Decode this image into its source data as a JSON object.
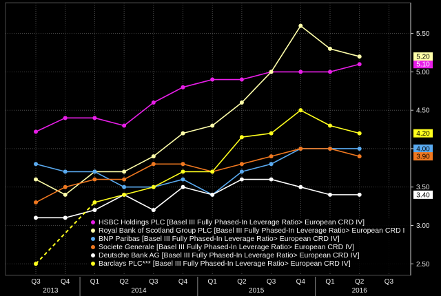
{
  "chart_data": {
    "type": "line",
    "categories": [
      "Q3",
      "Q4",
      "Q1",
      "Q2",
      "Q3",
      "Q4",
      "Q1",
      "Q2",
      "Q3",
      "Q4",
      "Q1",
      "Q2",
      "Q3"
    ],
    "years": [
      {
        "label": "2013",
        "from": 0,
        "to": 1
      },
      {
        "label": "2014",
        "from": 2,
        "to": 5
      },
      {
        "label": "2015",
        "from": 6,
        "to": 9
      },
      {
        "label": "2016",
        "from": 10,
        "to": 12
      }
    ],
    "ylim": [
      2.35,
      5.9
    ],
    "yticks": [
      "2.50",
      "3.00",
      "3.50",
      "4.00",
      "4.50",
      "5.00",
      "5.50"
    ],
    "grid": true,
    "legend_position": "bottom-left",
    "series": [
      {
        "name": "HSBC Holdings PLC [Basel III Fully Phased-In Leverage Ratio> European CRD IV]",
        "color": "#e81ee8",
        "values": [
          4.22,
          4.4,
          4.4,
          4.3,
          4.6,
          4.8,
          4.9,
          4.9,
          5.0,
          5.0,
          5.0,
          5.1,
          null
        ],
        "end_label": "5.10"
      },
      {
        "name": "Royal Bank of Scotland Group PLC [Basel III Fully Phased-In Leverage Ratio> European CRD I",
        "color": "#ffffaa",
        "values": [
          3.6,
          3.4,
          3.7,
          3.7,
          3.9,
          4.2,
          4.3,
          4.6,
          5.0,
          5.6,
          5.3,
          5.2,
          null
        ],
        "end_label": "5.20"
      },
      {
        "name": "BNP Paribas [Basel III Fully Phased-In Leverage Ratio> European CRD IV]",
        "color": "#5aaaf0",
        "values": [
          3.8,
          3.7,
          3.7,
          3.5,
          3.5,
          3.6,
          3.4,
          3.7,
          3.8,
          4.0,
          4.0,
          4.0,
          null
        ],
        "end_label": "4.00"
      },
      {
        "name": "Societe Generale [Basel III Fully Phased-In Leverage Ratio> European CRD IV]",
        "color": "#f07820",
        "values": [
          3.3,
          3.5,
          3.6,
          3.6,
          3.8,
          3.8,
          3.7,
          3.8,
          3.9,
          4.0,
          4.0,
          3.9,
          null
        ],
        "end_label": "3.90"
      },
      {
        "name": "Deutsche Bank AG [Basel III Fully Phased-In Leverage Ratio> European CRD IV]",
        "color": "#ffffff",
        "values": [
          3.1,
          3.1,
          3.2,
          3.4,
          3.2,
          3.5,
          3.4,
          3.6,
          3.6,
          3.5,
          3.4,
          3.4,
          null
        ],
        "end_label": "3.40"
      },
      {
        "name": "Barclays PLC*** [Basel III Fully Phased-In Leverage Ratio> European CRD IV]",
        "color": "#ffff1e",
        "values": [
          2.5,
          null,
          3.3,
          3.4,
          3.5,
          3.7,
          3.7,
          4.15,
          4.2,
          4.5,
          4.3,
          4.2,
          null
        ],
        "dashed_segment": [
          0,
          2
        ],
        "end_label": "4.20"
      }
    ]
  }
}
